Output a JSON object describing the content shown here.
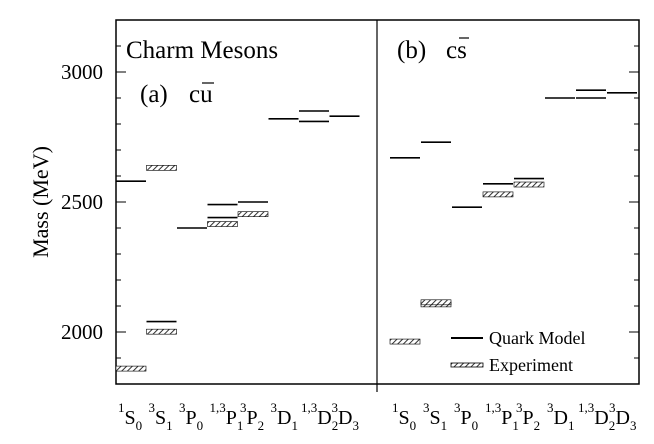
{
  "chart_data": {
    "type": "level-diagram",
    "ylabel": "Mass (MeV)",
    "ylim": [
      1800,
      3200
    ],
    "yticks": [
      2000,
      2500,
      3000
    ],
    "legend": {
      "placement": "bottom-right",
      "entries": [
        {
          "label": "Quark Model",
          "style": "solid"
        },
        {
          "label": "Experiment",
          "style": "hatched"
        }
      ]
    },
    "categories": [
      {
        "sup": "1",
        "base": "S",
        "sub": "0"
      },
      {
        "sup": "3",
        "base": "S",
        "sub": "1"
      },
      {
        "sup": "3",
        "base": "P",
        "sub": "0"
      },
      {
        "sup": "1,3",
        "base": "P",
        "sub": "1"
      },
      {
        "sup": "3",
        "base": "P",
        "sub": "2"
      },
      {
        "sup": "3",
        "base": "D",
        "sub": "1"
      },
      {
        "sup": "1,3",
        "base": "D",
        "sub": "2"
      },
      {
        "sup": "3",
        "base": "D",
        "sub": "3"
      }
    ],
    "panels": [
      {
        "title": "Charm Mesons",
        "label": "(a)",
        "flavor_base": "cu",
        "flavor_bar": "u",
        "quark_model": [
          {
            "cat": 0,
            "mass": 2580
          },
          {
            "cat": 1,
            "mass": 2040
          },
          {
            "cat": 2,
            "mass": 2400
          },
          {
            "cat": 3,
            "mass": 2440
          },
          {
            "cat": 3,
            "mass": 2490
          },
          {
            "cat": 4,
            "mass": 2500
          },
          {
            "cat": 5,
            "mass": 2820
          },
          {
            "cat": 6,
            "mass": 2810
          },
          {
            "cat": 6,
            "mass": 2850
          },
          {
            "cat": 7,
            "mass": 2830
          }
        ],
        "experiment": [
          {
            "cat": 0,
            "mass": 1865
          },
          {
            "cat": 1,
            "mass": 2007
          },
          {
            "cat": 1,
            "mass": 2637
          },
          {
            "cat": 3,
            "mass": 2421
          },
          {
            "cat": 4,
            "mass": 2459
          }
        ]
      },
      {
        "title": "",
        "label": "(b)",
        "flavor_base": "cs",
        "flavor_bar": "s",
        "quark_model": [
          {
            "cat": 0,
            "mass": 2670
          },
          {
            "cat": 1,
            "mass": 2730
          },
          {
            "cat": 2,
            "mass": 2480
          },
          {
            "cat": 3,
            "mass": 2570
          },
          {
            "cat": 4,
            "mass": 2590
          },
          {
            "cat": 5,
            "mass": 2900
          },
          {
            "cat": 6,
            "mass": 2900
          },
          {
            "cat": 6,
            "mass": 2930
          },
          {
            "cat": 7,
            "mass": 2920
          }
        ],
        "experiment": [
          {
            "cat": 0,
            "mass": 1969
          },
          {
            "cat": 1,
            "mass": 2112
          },
          {
            "cat": 1,
            "mass": 2120
          },
          {
            "cat": 3,
            "mass": 2535
          },
          {
            "cat": 4,
            "mass": 2573
          }
        ]
      }
    ]
  }
}
